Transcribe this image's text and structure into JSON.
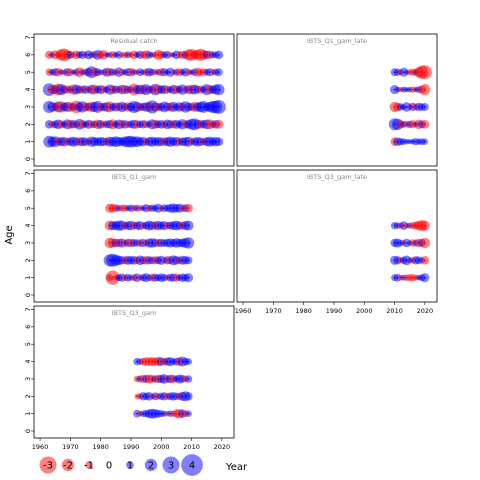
{
  "chart_data": {
    "type": "scatter",
    "variant": "bubble-residual-panels",
    "ylabel": "Age",
    "xlabel": "Year",
    "xlim": [
      1958,
      2024
    ],
    "ylim": [
      -0.4,
      7.2
    ],
    "x_ticks": [
      1960,
      1970,
      1980,
      1990,
      2000,
      2010,
      2020
    ],
    "y_ticks": [
      0,
      1,
      2,
      3,
      4,
      5,
      6,
      7
    ],
    "colors": {
      "positive": "#0000ff",
      "negative": "#ff0000",
      "zero": "#000000"
    },
    "legend": {
      "placement": "bottom-left",
      "values": [
        -3,
        -2,
        -1,
        0,
        1,
        2,
        3,
        4
      ],
      "labels": [
        "-3",
        "-2",
        "-1",
        "0",
        "1",
        "2",
        "3",
        "4"
      ]
    },
    "panels": [
      {
        "name": "Residual catch",
        "years": [
          1963,
          2019
        ],
        "ages": [
          1,
          2,
          3,
          4,
          5,
          6
        ],
        "residuals": {
          "6": [
            -1.2,
            0.6,
            -1.4,
            -0.8,
            -1.9,
            -2.2,
            -1.5,
            1.1,
            -0.7,
            -1.3,
            0.9,
            1.2,
            -0.6,
            1.4,
            0.8,
            -0.9,
            1.6,
            -1.1,
            -1.5,
            0.5,
            0.7,
            -1.0,
            0.6,
            1.1,
            -0.5,
            -0.8,
            0.9,
            -0.6,
            -1.3,
            0.7,
            1.2,
            -0.9,
            -1.4,
            1.0,
            0.6,
            -0.7,
            -1.6,
            -1.2,
            0.8,
            1.1,
            -0.6,
            0.5,
            1.3,
            -0.9,
            -1.2,
            1.0,
            -1.8,
            -2.0,
            -1.4,
            -1.6,
            -2.1,
            -1.5,
            1.2,
            -1.3,
            0.9,
            0.8,
            1.3
          ],
          "5": [
            -1.0,
            0.8,
            1.1,
            -1.3,
            0.6,
            -0.7,
            1.2,
            -1.1,
            0.5,
            0.9,
            -1.6,
            0.7,
            -0.9,
            1.3,
            2.0,
            -1.4,
            1.1,
            0.6,
            -0.8,
            1.4,
            -1.2,
            1.0,
            -0.6,
            1.5,
            -0.9,
            0.7,
            1.2,
            -1.3,
            0.8,
            -0.5,
            1.1,
            0.6,
            -1.0,
            1.3,
            0.9,
            -0.7,
            0.8,
            -1.1,
            1.2,
            0.5,
            1.4,
            -0.6,
            0.9,
            -1.2,
            0.7,
            1.3,
            -0.8,
            0.6,
            1.0,
            -1.4,
            -0.9,
            -1.1,
            0.8,
            1.2,
            -0.7,
            0.9,
            1.1
          ],
          "4": [
            2.2,
            -1.5,
            1.4,
            -2.0,
            1.8,
            1.2,
            -1.3,
            0.9,
            -1.7,
            1.6,
            1.1,
            -1.2,
            1.3,
            -0.8,
            1.5,
            -1.6,
            1.0,
            1.4,
            -1.1,
            0.8,
            1.7,
            -1.3,
            1.2,
            -0.9,
            1.5,
            -1.4,
            1.1,
            0.9,
            -2.0,
            1.3,
            1.6,
            -1.5,
            1.8,
            1.0,
            -1.2,
            1.9,
            -1.6,
            1.2,
            1.4,
            -1.1,
            0.8,
            1.5,
            -1.3,
            1.0,
            1.7,
            -0.9,
            1.3,
            -1.5,
            1.6,
            1.1,
            -1.2,
            0.9,
            1.8,
            -1.4,
            1.2,
            1.6,
            1.9
          ],
          "3": [
            2.1,
            1.5,
            -1.2,
            1.8,
            -1.9,
            1.3,
            1.6,
            -1.5,
            1.1,
            -2.2,
            1.4,
            1.9,
            -1.3,
            1.2,
            -1.7,
            1.6,
            2.0,
            -1.1,
            1.3,
            1.5,
            -1.8,
            1.0,
            1.4,
            -1.2,
            1.7,
            1.1,
            -1.5,
            1.3,
            2.1,
            1.6,
            -1.1,
            1.2,
            1.5,
            -1.6,
            2.3,
            1.4,
            -1.3,
            1.1,
            1.8,
            1.2,
            -1.4,
            1.6,
            1.0,
            1.5,
            -1.2,
            1.9,
            1.3,
            1.1,
            -1.6,
            1.4,
            1.7,
            2.0,
            1.2,
            1.6,
            2.1,
            2.2,
            2.5
          ],
          "2": [
            1.3,
            -0.9,
            1.1,
            1.5,
            -1.2,
            0.8,
            1.6,
            -1.4,
            1.2,
            -1.0,
            1.8,
            -1.3,
            0.9,
            1.4,
            -1.1,
            1.0,
            -1.5,
            1.3,
            -0.8,
            1.1,
            1.2,
            -1.6,
            0.9,
            1.5,
            -1.2,
            1.3,
            -0.9,
            1.1,
            1.4,
            -1.3,
            1.0,
            1.2,
            -1.1,
            0.8,
            1.6,
            -1.4,
            1.1,
            1.3,
            -1.0,
            1.5,
            1.2,
            -1.2,
            1.4,
            0.9,
            1.7,
            -1.1,
            1.3,
            1.8,
            2.0,
            1.4,
            -1.3,
            1.2,
            1.5,
            -1.6,
            -1.0,
            1.3,
            -1.4
          ],
          "1": [
            2.0,
            1.6,
            1.8,
            -1.2,
            1.4,
            1.5,
            -1.0,
            1.3,
            1.6,
            1.2,
            -1.4,
            1.4,
            1.3,
            -0.9,
            1.7,
            1.4,
            1.2,
            1.5,
            1.3,
            -1.1,
            1.6,
            1.4,
            1.8,
            1.5,
            1.2,
            1.7,
            1.9,
            2.0,
            1.6,
            1.8,
            1.3,
            1.5,
            -1.0,
            1.4,
            1.6,
            1.2,
            1.5,
            1.3,
            -1.2,
            1.4,
            1.7,
            1.2,
            1.5,
            -1.1,
            1.3,
            1.4,
            1.6,
            -0.9,
            1.2,
            1.5,
            1.3,
            -1.0,
            1.4,
            1.6,
            1.2,
            1.5,
            1.3
          ]
        }
      },
      {
        "name": "IBTS_Q1_gam_late",
        "years": [
          2010,
          2020
        ],
        "ages": [
          1,
          2,
          3,
          4,
          5
        ],
        "residuals": {
          "5": [
            1.1,
            1.0,
            -0.6,
            1.4,
            0.5,
            -0.7,
            -1.0,
            0.8,
            -1.6,
            -2.3,
            -2.5
          ],
          "4": [
            1.4,
            0.6,
            -0.5,
            0.7,
            0.5,
            0.6,
            -0.8,
            0.5,
            0.9,
            -1.2,
            -1.8
          ],
          "3": [
            -1.6,
            -1.3,
            1.0,
            0.6,
            1.5,
            -0.6,
            1.2,
            -0.9,
            1.3,
            1.0,
            1.1
          ],
          "2": [
            2.0,
            1.9,
            -1.2,
            0.9,
            -0.8,
            1.0,
            -1.2,
            0.6,
            -1.5,
            1.1,
            -1.3
          ],
          "1": [
            -1.2,
            1.3,
            1.0,
            0.8,
            0.6,
            0.5,
            0.6,
            1.0,
            0.7,
            0.9,
            0.8
          ]
        }
      },
      {
        "name": "IBTS_Q1_gam",
        "years": [
          1983,
          2009
        ],
        "ages": [
          1,
          2,
          3,
          4,
          5
        ],
        "residuals": {
          "5": [
            -1.4,
            -1.3,
            -1.1,
            0.8,
            -0.9,
            -1.0,
            0.7,
            1.0,
            -0.8,
            0.9,
            -0.7,
            0.6,
            1.2,
            -0.9,
            1.0,
            0.8,
            1.4,
            -0.6,
            1.1,
            0.9,
            1.3,
            1.5,
            1.2,
            1.4,
            -1.0,
            1.1,
            -1.3
          ],
          "4": [
            -1.6,
            1.4,
            1.3,
            1.7,
            1.6,
            -1.0,
            1.3,
            1.5,
            -1.1,
            1.2,
            1.4,
            -0.9,
            1.1,
            1.6,
            1.3,
            -1.2,
            1.5,
            1.1,
            1.4,
            -1.0,
            1.2,
            1.3,
            1.6,
            1.2,
            -1.1,
            1.4,
            1.6
          ],
          "3": [
            -1.7,
            -1.5,
            1.3,
            -1.2,
            1.4,
            -0.9,
            1.2,
            -1.3,
            1.1,
            1.0,
            -1.0,
            1.3,
            -0.8,
            1.4,
            1.5,
            1.2,
            -1.1,
            1.3,
            1.0,
            1.2,
            1.4,
            1.1,
            1.5,
            1.2,
            1.3,
            1.6,
            1.9
          ],
          "2": [
            2.1,
            2.3,
            1.8,
            1.5,
            1.2,
            -1.1,
            1.4,
            1.2,
            1.3,
            -1.0,
            1.5,
            1.1,
            -1.3,
            1.2,
            1.0,
            -1.2,
            1.1,
            1.4,
            -0.8,
            1.2,
            -1.1,
            1.6,
            1.3,
            -1.0,
            1.4,
            1.2,
            1.1
          ],
          "1": [
            -1.0,
            -2.6,
            -0.7,
            0.9,
            1.2,
            -0.8,
            1.1,
            0.7,
            -0.9,
            1.3,
            -0.6,
            1.0,
            1.4,
            0.8,
            -1.1,
            1.2,
            0.9,
            1.3,
            1.0,
            -0.7,
            1.1,
            1.2,
            -1.2,
            0.8,
            1.3,
            1.0,
            1.4
          ]
        }
      },
      {
        "name": "IBTS_Q3_gam_late",
        "years": [
          2010,
          2020
        ],
        "ages": [
          1,
          2,
          3,
          4
        ],
        "residuals": {
          "4": [
            1.0,
            0.8,
            -0.7,
            1.3,
            -0.6,
            0.7,
            -0.9,
            -1.1,
            -1.5,
            -1.8,
            -1.6
          ],
          "3": [
            1.2,
            1.4,
            0.8,
            -0.6,
            1.3,
            0.5,
            -1.0,
            0.9,
            -1.3,
            1.1,
            -1.7
          ],
          "2": [
            1.4,
            1.2,
            -0.7,
            1.0,
            1.5,
            0.6,
            -0.8,
            1.2,
            1.1,
            0.7,
            -1.3
          ],
          "1": [
            0.9,
            1.1,
            -0.6,
            0.7,
            -0.8,
            -0.9,
            -1.0,
            -0.7,
            0.6,
            0.9,
            1.4
          ]
        }
      },
      {
        "name": "IBTS_Q3_gam",
        "years": [
          1992,
          2009
        ],
        "ages": [
          1,
          2,
          3,
          4
        ],
        "residuals": {
          "4": [
            1.0,
            0.8,
            -1.0,
            -1.3,
            -1.2,
            -1.4,
            -1.1,
            -1.5,
            1.3,
            -1.0,
            1.2,
            1.4,
            0.8,
            1.1,
            -1.3,
            1.6,
            1.0,
            0.9
          ],
          "3": [
            -0.8,
            0.9,
            -1.2,
            1.1,
            -1.4,
            -1.1,
            1.0,
            -1.3,
            1.2,
            1.5,
            -1.0,
            1.3,
            -1.2,
            0.9,
            1.4,
            1.1,
            -0.9,
            1.0
          ],
          "2": [
            -0.5,
            -0.7,
            1.2,
            1.0,
            1.3,
            -0.6,
            1.1,
            -0.8,
            1.0,
            1.2,
            -0.9,
            1.1,
            1.3,
            1.0,
            -1.0,
            1.4,
            1.6,
            1.2
          ],
          "1": [
            1.1,
            -0.6,
            0.8,
            1.0,
            1.3,
            1.6,
            1.4,
            1.1,
            0.9,
            0.7,
            -0.6,
            0.8,
            -0.7,
            -1.2,
            -1.5,
            1.2,
            -0.9,
            0.8
          ]
        }
      }
    ]
  }
}
